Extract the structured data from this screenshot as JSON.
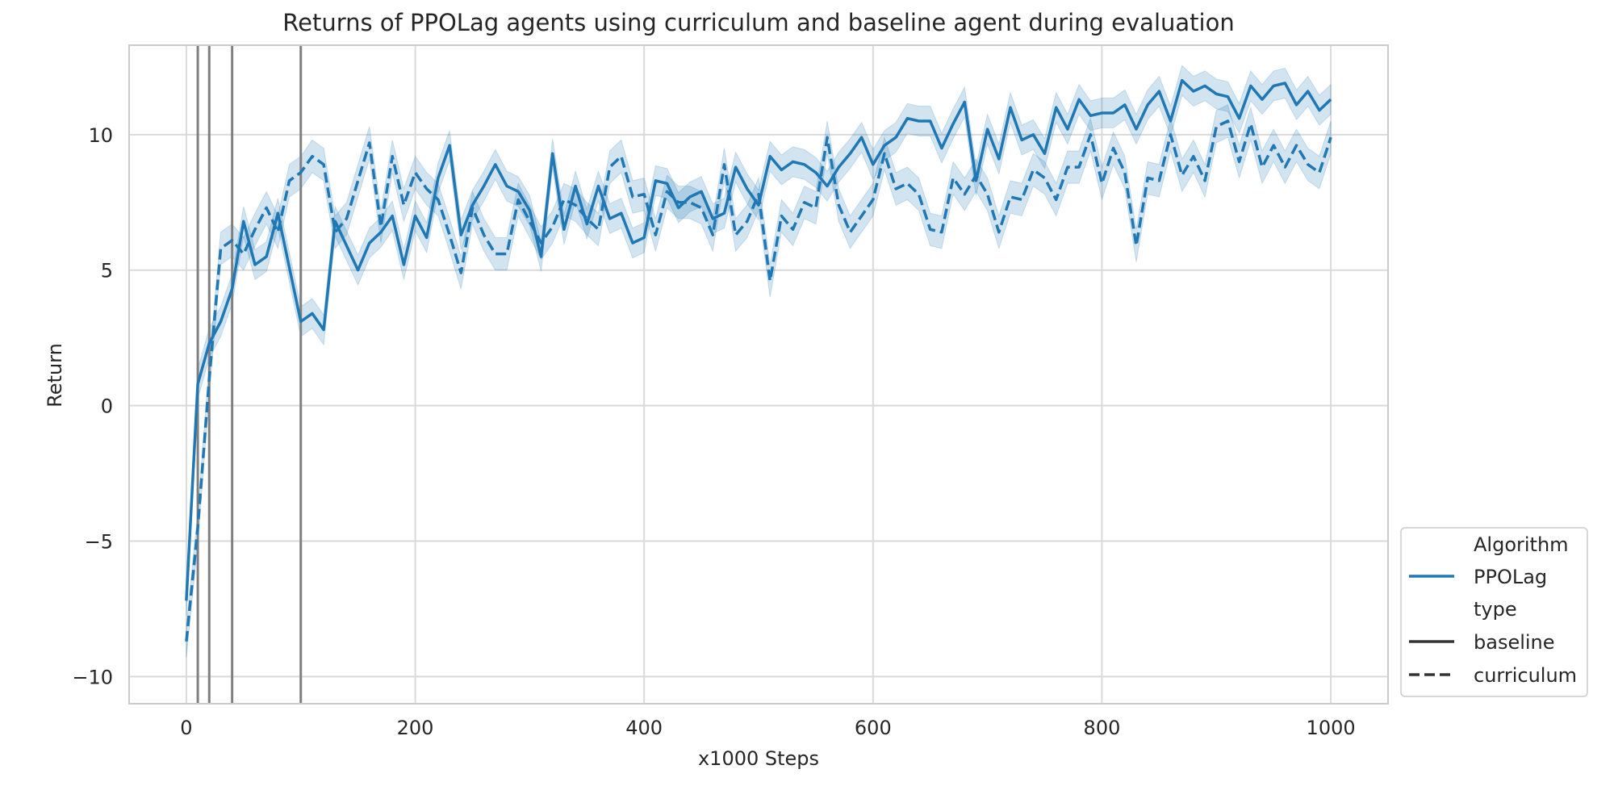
{
  "chart_data": {
    "type": "line",
    "title": "Returns of PPOLag agents using curriculum and baseline agent during evaluation",
    "xlabel": "x1000 Steps",
    "ylabel": "Return",
    "xlim": [
      -50,
      1050
    ],
    "ylim": [
      -11,
      13.3
    ],
    "xticks": [
      0,
      200,
      400,
      600,
      800,
      1000
    ],
    "yticks": [
      -10,
      -5,
      0,
      5,
      10
    ],
    "tick_labels": {
      "x": [
        "0",
        "200",
        "400",
        "600",
        "800",
        "1000"
      ],
      "y": [
        "−10",
        "−5",
        "0",
        "5",
        "10"
      ]
    },
    "grid": true,
    "vlines": [
      10,
      20,
      40,
      100
    ],
    "color": "#1f77b4",
    "vline_color": "#808080",
    "x": [
      0,
      10,
      20,
      30,
      40,
      50,
      60,
      70,
      80,
      90,
      100,
      110,
      120,
      130,
      140,
      150,
      160,
      170,
      180,
      190,
      200,
      210,
      220,
      230,
      240,
      250,
      260,
      270,
      280,
      290,
      300,
      310,
      320,
      330,
      340,
      350,
      360,
      370,
      380,
      390,
      400,
      410,
      420,
      430,
      440,
      450,
      460,
      470,
      480,
      490,
      500,
      510,
      520,
      530,
      540,
      550,
      560,
      570,
      580,
      590,
      600,
      610,
      620,
      630,
      640,
      650,
      660,
      670,
      680,
      690,
      700,
      710,
      720,
      730,
      740,
      750,
      760,
      770,
      780,
      790,
      800,
      810,
      820,
      830,
      840,
      850,
      860,
      870,
      880,
      890,
      900,
      910,
      920,
      930,
      940,
      950,
      960,
      970,
      980,
      990,
      1000
    ],
    "series": [
      {
        "style": "solid",
        "values": [
          -7.2,
          0.8,
          2.3,
          3.1,
          4.3,
          6.8,
          5.2,
          5.5,
          7.1,
          5.1,
          3.1,
          3.4,
          2.8,
          6.8,
          5.9,
          5.0,
          6.0,
          6.4,
          7.0,
          5.2,
          7.0,
          6.2,
          8.4,
          9.6,
          6.3,
          7.4,
          8.1,
          8.9,
          8.1,
          7.9,
          7.2,
          5.5,
          9.3,
          6.5,
          8.1,
          6.7,
          8.1,
          6.9,
          7.1,
          6.0,
          6.2,
          8.3,
          8.2,
          7.3,
          7.7,
          7.9,
          6.9,
          7.1,
          8.8,
          8.0,
          7.4,
          9.2,
          8.7,
          9.0,
          8.9,
          8.6,
          8.1,
          8.8,
          9.3,
          9.9,
          8.9,
          9.6,
          9.9,
          10.6,
          10.5,
          10.5,
          9.5,
          10.4,
          11.2,
          8.3,
          10.2,
          9.1,
          11.0,
          9.8,
          10.0,
          9.3,
          11.0,
          10.2,
          11.3,
          10.7,
          10.8,
          10.8,
          11.1,
          10.2,
          11.1,
          11.6,
          10.5,
          12.0,
          11.6,
          11.8,
          11.5,
          11.4,
          10.6,
          11.8,
          11.3,
          11.8,
          11.9,
          11.1,
          11.6,
          10.9,
          11.3
        ],
        "band": 0.55
      },
      {
        "style": "dashed",
        "values": [
          -8.7,
          -4.5,
          1.0,
          5.8,
          6.1,
          5.6,
          6.5,
          7.3,
          6.4,
          8.3,
          8.6,
          9.2,
          8.9,
          6.4,
          6.9,
          8.3,
          9.7,
          6.6,
          9.2,
          7.4,
          8.6,
          8.0,
          7.6,
          6.3,
          4.9,
          7.3,
          6.3,
          5.6,
          5.6,
          7.6,
          6.8,
          6.0,
          6.6,
          7.6,
          7.4,
          6.9,
          6.5,
          8.8,
          9.2,
          7.7,
          7.8,
          6.3,
          7.9,
          7.5,
          7.5,
          7.3,
          6.3,
          8.9,
          6.3,
          6.8,
          7.8,
          4.6,
          7.0,
          6.5,
          7.5,
          7.3,
          9.9,
          7.4,
          6.4,
          7.0,
          7.6,
          9.3,
          8.0,
          8.2,
          7.8,
          6.5,
          6.4,
          8.4,
          7.8,
          8.5,
          7.8,
          6.4,
          7.7,
          7.6,
          8.7,
          8.4,
          7.6,
          8.8,
          8.8,
          10.0,
          8.2,
          9.5,
          8.6,
          5.9,
          8.4,
          8.3,
          10.0,
          8.5,
          9.2,
          8.3,
          10.3,
          10.5,
          9.0,
          10.4,
          8.8,
          9.6,
          8.8,
          9.6,
          8.9,
          8.6,
          9.9
        ],
        "band": 0.6
      }
    ],
    "legend": {
      "location": "lower-right outside",
      "entries": [
        {
          "label": "Algorithm",
          "kind": "heading"
        },
        {
          "label": "PPOLag",
          "kind": "line-color"
        },
        {
          "label": "type",
          "kind": "heading"
        },
        {
          "label": "baseline",
          "kind": "line-solid"
        },
        {
          "label": "curriculum",
          "kind": "line-dashed"
        }
      ]
    }
  }
}
